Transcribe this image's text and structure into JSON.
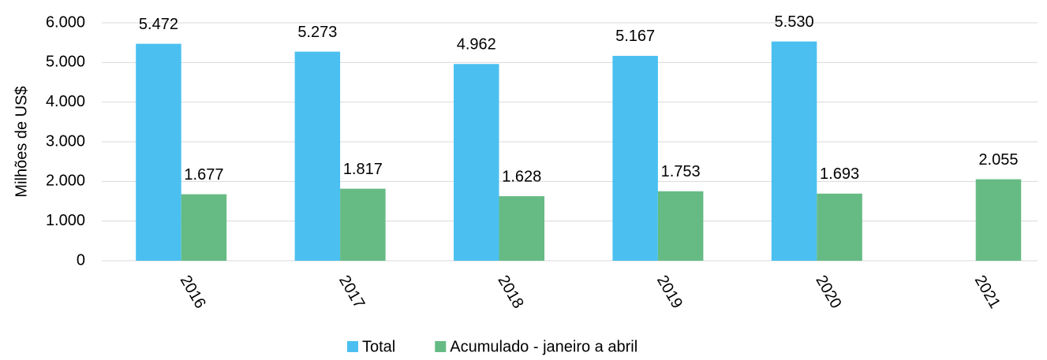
{
  "chart_data": {
    "type": "bar",
    "y_axis_label": "Milhões de US$",
    "categories": [
      "2016",
      "2017",
      "2018",
      "2019",
      "2020",
      "2021"
    ],
    "series": [
      {
        "name": "Total",
        "color": "#4bc0f0",
        "values": [
          5472,
          5273,
          4962,
          5167,
          5530,
          null
        ],
        "value_labels": [
          "5.472",
          "5.273",
          "4.962",
          "5.167",
          "5.530",
          null
        ]
      },
      {
        "name": "Acumulado - janeiro a abril",
        "color": "#66bb84",
        "values": [
          1677,
          1817,
          1628,
          1753,
          1693,
          2055
        ],
        "value_labels": [
          "1.677",
          "1.817",
          "1.628",
          "1.753",
          "1.693",
          "2.055"
        ]
      }
    ],
    "ylim": [
      0,
      6000
    ],
    "yticks": [
      0,
      {
        "value": 1000,
        "label": "1.000"
      },
      {
        "value": 2000,
        "label": "2.000"
      },
      {
        "value": 3000,
        "label": "3.000"
      },
      {
        "value": 4000,
        "label": "4.000"
      },
      {
        "value": 5000,
        "label": "5.000"
      },
      {
        "value": 6000,
        "label": "6.000"
      }
    ],
    "grid": true,
    "legend": "bottom"
  }
}
